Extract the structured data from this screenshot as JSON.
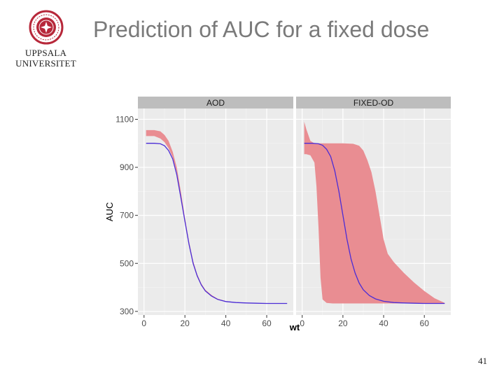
{
  "slide": {
    "title": "Prediction of AUC for a fixed dose",
    "number": "41"
  },
  "logo": {
    "line1": "UPPSALA",
    "line2": "UNIVERSITET",
    "color": "#b7283a"
  },
  "chart_data": {
    "type": "line",
    "ylabel": "AUC",
    "xlabel": "wt",
    "xlim": [
      -3,
      73
    ],
    "ylim": [
      285,
      1145
    ],
    "xticks": [
      0,
      20,
      40,
      60
    ],
    "yticks": [
      300,
      500,
      700,
      900,
      1100
    ],
    "band_color": "#e98d92",
    "line_color": "#4b2cd6",
    "panel_background": "#ebebeb",
    "strip_background": "#bdbdbd",
    "panels": [
      {
        "name": "AOD",
        "line": {
          "x": [
            1,
            5,
            8,
            10,
            12,
            14,
            16,
            18,
            20,
            22,
            24,
            26,
            28,
            30,
            33,
            36,
            40,
            45,
            50,
            55,
            60,
            65,
            70
          ],
          "y": [
            1000,
            1000,
            998,
            990,
            970,
            935,
            870,
            775,
            675,
            580,
            500,
            448,
            410,
            385,
            364,
            350,
            341,
            337,
            335,
            334,
            333,
            333,
            333
          ]
        },
        "band": {
          "x": [
            1,
            5,
            8,
            10,
            12,
            14,
            16,
            18,
            20,
            22,
            24,
            26,
            28,
            30,
            33,
            36,
            40,
            45,
            50,
            55,
            60,
            65,
            70
          ],
          "upper": [
            1055,
            1055,
            1050,
            1035,
            1010,
            965,
            900,
            800,
            690,
            592,
            510,
            455,
            416,
            390,
            368,
            353,
            343,
            338,
            336,
            334,
            333,
            333,
            333
          ],
          "lower": [
            1030,
            1030,
            1020,
            1005,
            980,
            942,
            880,
            783,
            680,
            582,
            502,
            449,
            410,
            386,
            364,
            350,
            341,
            337,
            335,
            334,
            333,
            333,
            333
          ]
        }
      },
      {
        "name": "FIXED-OD",
        "line": {
          "x": [
            1,
            5,
            8,
            10,
            12,
            14,
            16,
            18,
            20,
            22,
            24,
            26,
            28,
            30,
            33,
            36,
            40,
            45,
            50,
            55,
            60,
            65,
            70
          ],
          "y": [
            1000,
            1000,
            998,
            992,
            975,
            945,
            885,
            800,
            700,
            600,
            518,
            460,
            418,
            390,
            366,
            352,
            342,
            337,
            335,
            334,
            333,
            333,
            333
          ]
        },
        "band": {
          "x": [
            1,
            2,
            4,
            6,
            7,
            8,
            9,
            10,
            12,
            15,
            20,
            25,
            28,
            30,
            32,
            34,
            36,
            38,
            40,
            42,
            45,
            50,
            55,
            60,
            65,
            70
          ],
          "upper": [
            1090,
            1060,
            1010,
            1000,
            1000,
            1000,
            1000,
            1000,
            1000,
            1000,
            1000,
            998,
            990,
            970,
            930,
            880,
            800,
            700,
            600,
            540,
            505,
            460,
            420,
            385,
            355,
            335
          ],
          "lower": [
            955,
            955,
            950,
            920,
            820,
            650,
            440,
            350,
            335,
            333,
            333,
            333,
            333,
            333,
            333,
            333,
            333,
            333,
            333,
            333,
            333,
            333,
            333,
            333,
            333,
            333
          ]
        }
      }
    ]
  }
}
